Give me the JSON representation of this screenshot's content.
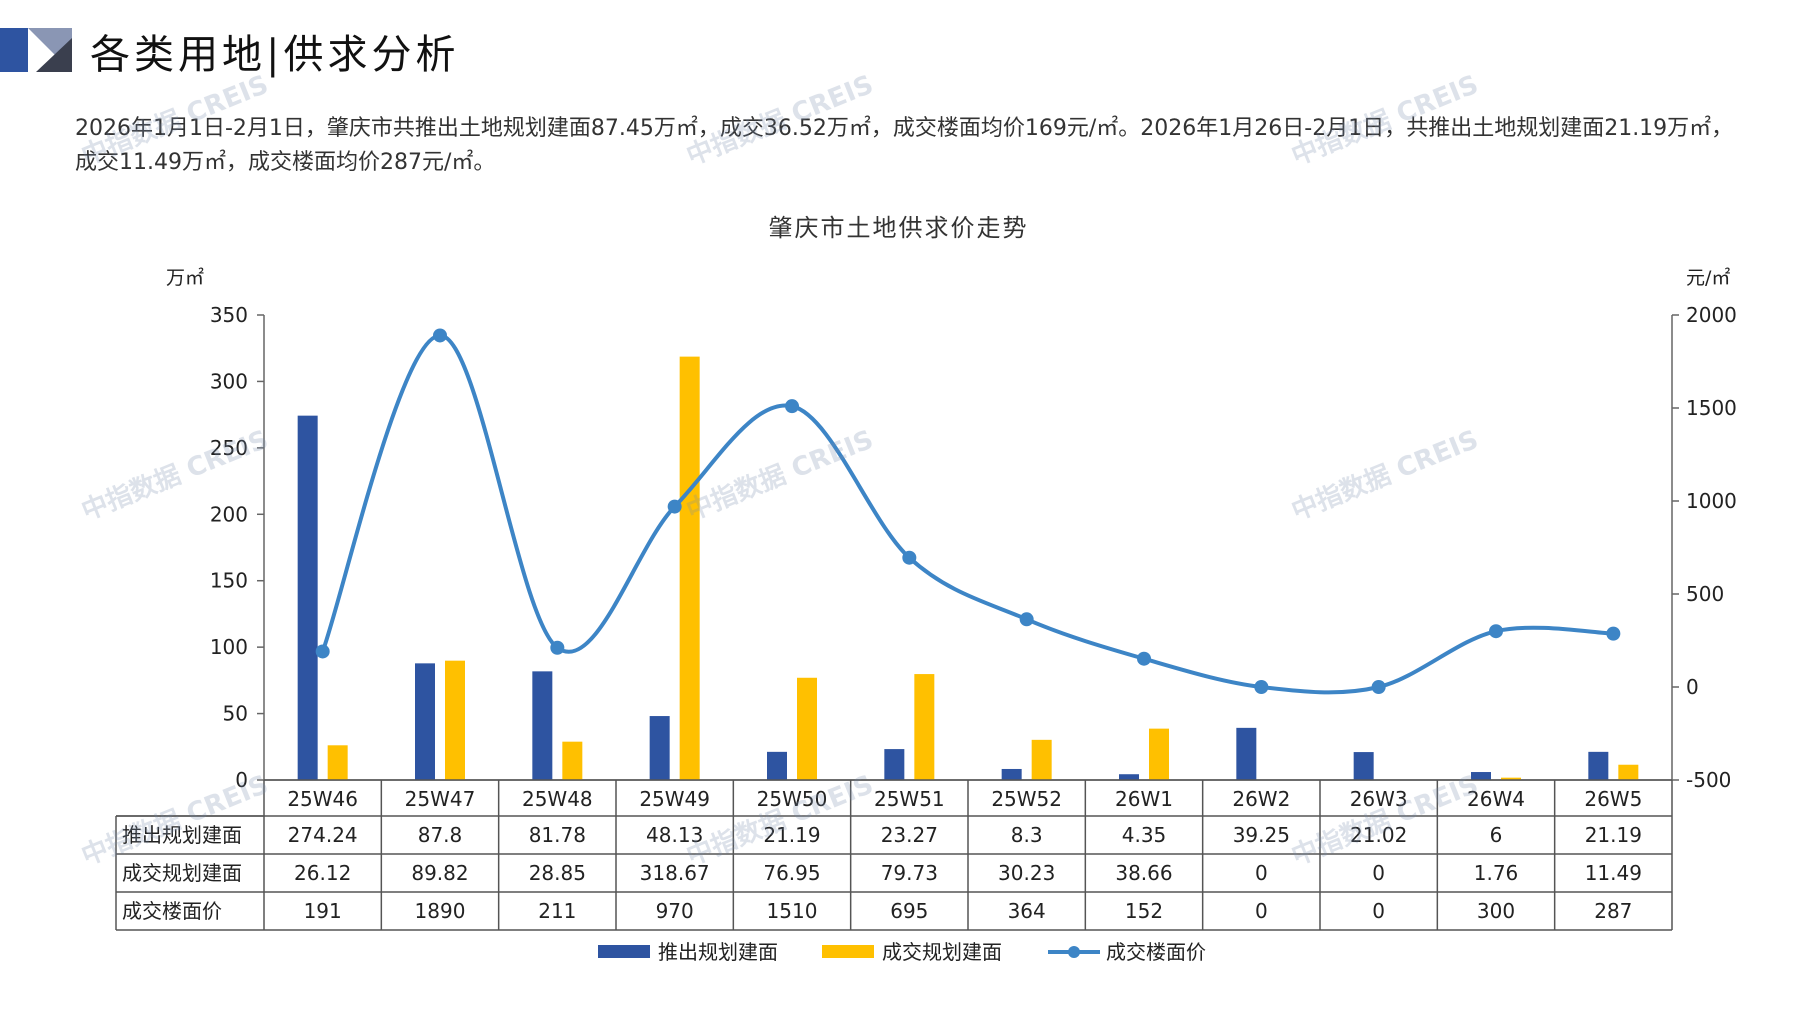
{
  "header": {
    "title": "各类用地|供求分析"
  },
  "summary": "2026年1月1日-2月1日，肇庆市共推出土地规划建面87.45万㎡，成交36.52万㎡，成交楼面均价169元/㎡。2026年1月26日-2月1日，共推出土地规划建面21.19万㎡，成交11.49万㎡，成交楼面均价287元/㎡。",
  "watermark_text": "中指数据 CREIS",
  "colors": {
    "supply": "#2E54A1",
    "deal": "#FFC000",
    "price": "#3D85C6",
    "table_border": "#555555"
  },
  "chart_data": {
    "type": "bar",
    "title": "肇庆市土地供求价走势",
    "y_left_label": "万㎡",
    "y_right_label": "元/㎡",
    "y_left_range": [
      0,
      350
    ],
    "y_left_ticks": [
      "0",
      "50",
      "100",
      "150",
      "200",
      "250",
      "300",
      "350"
    ],
    "y_right_range": [
      -500,
      2000
    ],
    "y_right_ticks": [
      "-500",
      "0",
      "500",
      "1000",
      "1500",
      "2000"
    ],
    "categories": [
      "25W46",
      "25W47",
      "25W48",
      "25W49",
      "25W50",
      "25W51",
      "25W52",
      "26W1",
      "26W2",
      "26W3",
      "26W4",
      "26W5"
    ],
    "series": [
      {
        "name": "推出规划建面",
        "type": "bar",
        "axis": "left",
        "values": [
          274.24,
          87.8,
          81.78,
          48.13,
          21.19,
          23.27,
          8.3,
          4.35,
          39.25,
          21.02,
          6,
          21.19
        ],
        "labels": [
          "274.24",
          "87.8",
          "81.78",
          "48.13",
          "21.19",
          "23.27",
          "8.3",
          "4.35",
          "39.25",
          "21.02",
          "6",
          "21.19"
        ]
      },
      {
        "name": "成交规划建面",
        "type": "bar",
        "axis": "left",
        "values": [
          26.12,
          89.82,
          28.85,
          318.67,
          76.95,
          79.73,
          30.23,
          38.66,
          0,
          0,
          1.76,
          11.49
        ],
        "labels": [
          "26.12",
          "89.82",
          "28.85",
          "318.67",
          "76.95",
          "79.73",
          "30.23",
          "38.66",
          "0",
          "0",
          "1.76",
          "11.49"
        ]
      },
      {
        "name": "成交楼面价",
        "type": "line",
        "axis": "right",
        "values": [
          191,
          1890,
          211,
          970,
          1510,
          695,
          364,
          152,
          0,
          0,
          300,
          287
        ],
        "labels": [
          "191",
          "1890",
          "211",
          "970",
          "1510",
          "695",
          "364",
          "152",
          "0",
          "0",
          "300",
          "287"
        ]
      }
    ],
    "legend_position": "bottom",
    "grid": false
  }
}
